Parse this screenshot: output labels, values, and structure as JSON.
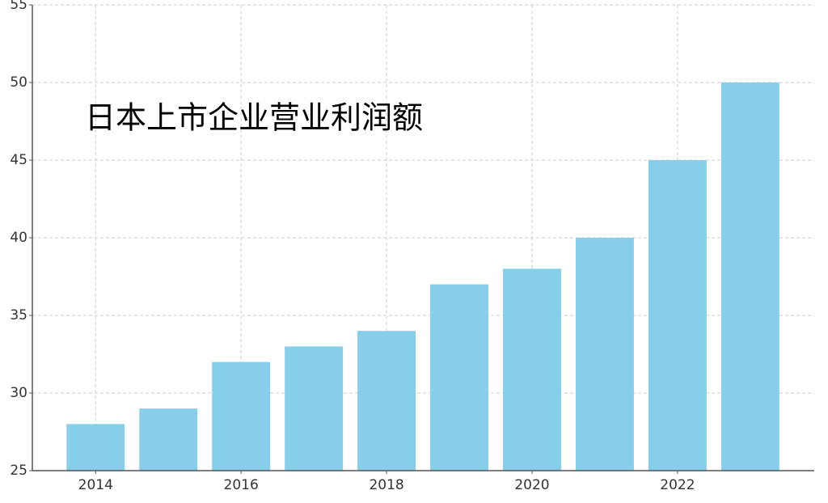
{
  "chart_data": {
    "type": "bar",
    "title": "日本上市企业营业利润额",
    "x": [
      2014,
      2015,
      2016,
      2017,
      2018,
      2019,
      2020,
      2021,
      2022,
      2023
    ],
    "values": [
      28,
      29,
      32,
      33,
      34,
      37,
      38,
      40,
      45,
      50
    ],
    "color": "#87ceeb",
    "xlim": [
      2013.13,
      2023.88
    ],
    "xticks": [
      2014,
      2016,
      2018,
      2020,
      2022
    ],
    "ylim": [
      25,
      55
    ],
    "yticks": [
      25,
      30,
      35,
      40,
      45,
      50,
      55
    ],
    "grid": true
  }
}
